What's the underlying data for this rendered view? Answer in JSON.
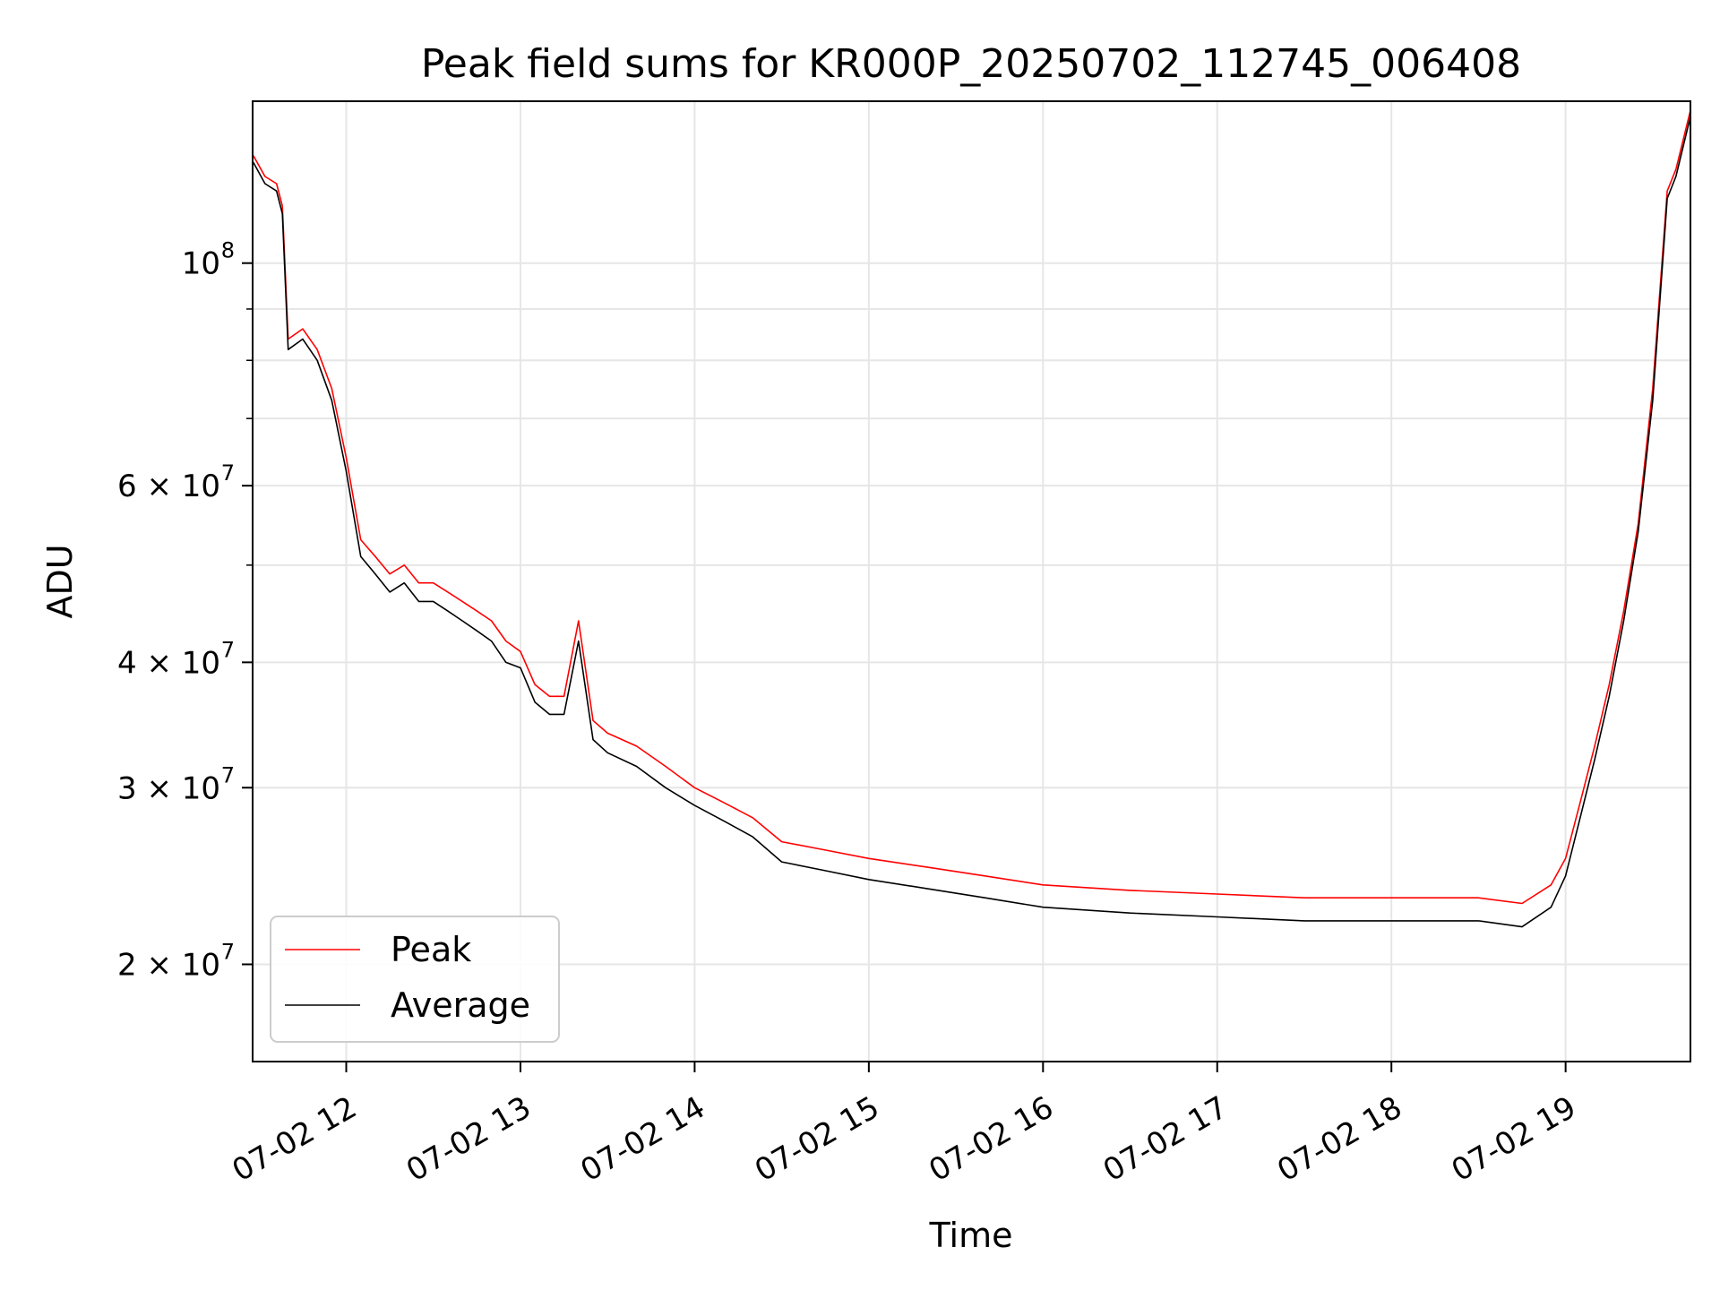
{
  "chart_data": {
    "type": "line",
    "title": "Peak field sums for KR000P_20250702_112745_006408",
    "xlabel": "Time",
    "ylabel": "ADU",
    "yscale": "log",
    "xlim": [
      "2025-07-02 11:27:45",
      "2025-07-02 19:43:00"
    ],
    "ylim": [
      16000000,
      145000000
    ],
    "grid": true,
    "legend_position": "lower-left",
    "x_ticks": [
      {
        "value": "2025-07-02 12:00",
        "label": "07-02 12"
      },
      {
        "value": "2025-07-02 13:00",
        "label": "07-02 13"
      },
      {
        "value": "2025-07-02 14:00",
        "label": "07-02 14"
      },
      {
        "value": "2025-07-02 15:00",
        "label": "07-02 15"
      },
      {
        "value": "2025-07-02 16:00",
        "label": "07-02 16"
      },
      {
        "value": "2025-07-02 17:00",
        "label": "07-02 17"
      },
      {
        "value": "2025-07-02 18:00",
        "label": "07-02 18"
      },
      {
        "value": "2025-07-02 19:00",
        "label": "07-02 19"
      }
    ],
    "y_ticks": [
      {
        "value": 20000000,
        "mantissa": "2 × 10",
        "exp": "7"
      },
      {
        "value": 30000000,
        "mantissa": "3 × 10",
        "exp": "7"
      },
      {
        "value": 40000000,
        "mantissa": "4 × 10",
        "exp": "7"
      },
      {
        "value": 60000000,
        "mantissa": "6 × 10",
        "exp": "7"
      },
      {
        "value": 100000000,
        "mantissa": "10",
        "exp": "8"
      }
    ],
    "y_minor_ticks": [
      50000000,
      70000000,
      80000000,
      90000000
    ],
    "series": [
      {
        "name": "Peak",
        "color": "#ff0000",
        "points": [
          [
            "2025-07-02 11:28",
            128000000
          ],
          [
            "2025-07-02 11:32",
            122000000
          ],
          [
            "2025-07-02 11:36",
            120000000
          ],
          [
            "2025-07-02 11:38",
            114000000
          ],
          [
            "2025-07-02 11:40",
            84000000
          ],
          [
            "2025-07-02 11:45",
            86000000
          ],
          [
            "2025-07-02 11:50",
            82000000
          ],
          [
            "2025-07-02 11:55",
            75000000
          ],
          [
            "2025-07-02 12:00",
            64000000
          ],
          [
            "2025-07-02 12:05",
            53000000
          ],
          [
            "2025-07-02 12:10",
            51000000
          ],
          [
            "2025-07-02 12:15",
            49000000
          ],
          [
            "2025-07-02 12:20",
            50000000
          ],
          [
            "2025-07-02 12:25",
            48000000
          ],
          [
            "2025-07-02 12:30",
            48000000
          ],
          [
            "2025-07-02 12:35",
            47000000
          ],
          [
            "2025-07-02 12:40",
            46000000
          ],
          [
            "2025-07-02 12:45",
            45000000
          ],
          [
            "2025-07-02 12:50",
            44000000
          ],
          [
            "2025-07-02 12:55",
            42000000
          ],
          [
            "2025-07-02 13:00",
            41000000
          ],
          [
            "2025-07-02 13:05",
            38000000
          ],
          [
            "2025-07-02 13:10",
            37000000
          ],
          [
            "2025-07-02 13:15",
            37000000
          ],
          [
            "2025-07-02 13:20",
            44000000
          ],
          [
            "2025-07-02 13:25",
            35000000
          ],
          [
            "2025-07-02 13:30",
            34000000
          ],
          [
            "2025-07-02 13:40",
            33000000
          ],
          [
            "2025-07-02 13:50",
            31500000
          ],
          [
            "2025-07-02 14:00",
            30000000
          ],
          [
            "2025-07-02 14:10",
            29000000
          ],
          [
            "2025-07-02 14:20",
            28000000
          ],
          [
            "2025-07-02 14:30",
            26500000
          ],
          [
            "2025-07-02 14:45",
            26000000
          ],
          [
            "2025-07-02 15:00",
            25500000
          ],
          [
            "2025-07-02 15:20",
            25000000
          ],
          [
            "2025-07-02 15:40",
            24500000
          ],
          [
            "2025-07-02 16:00",
            24000000
          ],
          [
            "2025-07-02 16:30",
            23700000
          ],
          [
            "2025-07-02 17:00",
            23500000
          ],
          [
            "2025-07-02 17:30",
            23300000
          ],
          [
            "2025-07-02 18:00",
            23300000
          ],
          [
            "2025-07-02 18:30",
            23300000
          ],
          [
            "2025-07-02 18:45",
            23000000
          ],
          [
            "2025-07-02 18:55",
            24000000
          ],
          [
            "2025-07-02 19:00",
            25500000
          ],
          [
            "2025-07-02 19:05",
            29000000
          ],
          [
            "2025-07-02 19:10",
            33000000
          ],
          [
            "2025-07-02 19:15",
            38000000
          ],
          [
            "2025-07-02 19:20",
            45000000
          ],
          [
            "2025-07-02 19:25",
            55000000
          ],
          [
            "2025-07-02 19:30",
            75000000
          ],
          [
            "2025-07-02 19:35",
            118000000
          ],
          [
            "2025-07-02 19:38",
            124000000
          ],
          [
            "2025-07-02 19:43",
            142000000
          ]
        ]
      },
      {
        "name": "Average",
        "color": "#000000",
        "points": [
          [
            "2025-07-02 11:28",
            126000000
          ],
          [
            "2025-07-02 11:32",
            120000000
          ],
          [
            "2025-07-02 11:36",
            118000000
          ],
          [
            "2025-07-02 11:38",
            112000000
          ],
          [
            "2025-07-02 11:40",
            82000000
          ],
          [
            "2025-07-02 11:45",
            84000000
          ],
          [
            "2025-07-02 11:50",
            80000000
          ],
          [
            "2025-07-02 11:55",
            73000000
          ],
          [
            "2025-07-02 12:00",
            62000000
          ],
          [
            "2025-07-02 12:05",
            51000000
          ],
          [
            "2025-07-02 12:10",
            49000000
          ],
          [
            "2025-07-02 12:15",
            47000000
          ],
          [
            "2025-07-02 12:20",
            48000000
          ],
          [
            "2025-07-02 12:25",
            46000000
          ],
          [
            "2025-07-02 12:30",
            46000000
          ],
          [
            "2025-07-02 12:35",
            45000000
          ],
          [
            "2025-07-02 12:40",
            44000000
          ],
          [
            "2025-07-02 12:45",
            43000000
          ],
          [
            "2025-07-02 12:50",
            42000000
          ],
          [
            "2025-07-02 12:55",
            40000000
          ],
          [
            "2025-07-02 13:00",
            39500000
          ],
          [
            "2025-07-02 13:05",
            36500000
          ],
          [
            "2025-07-02 13:10",
            35500000
          ],
          [
            "2025-07-02 13:15",
            35500000
          ],
          [
            "2025-07-02 13:20",
            42000000
          ],
          [
            "2025-07-02 13:25",
            33500000
          ],
          [
            "2025-07-02 13:30",
            32500000
          ],
          [
            "2025-07-02 13:40",
            31500000
          ],
          [
            "2025-07-02 13:50",
            30000000
          ],
          [
            "2025-07-02 14:00",
            28800000
          ],
          [
            "2025-07-02 14:10",
            27800000
          ],
          [
            "2025-07-02 14:20",
            26800000
          ],
          [
            "2025-07-02 14:30",
            25300000
          ],
          [
            "2025-07-02 14:45",
            24800000
          ],
          [
            "2025-07-02 15:00",
            24300000
          ],
          [
            "2025-07-02 15:20",
            23800000
          ],
          [
            "2025-07-02 15:40",
            23300000
          ],
          [
            "2025-07-02 16:00",
            22800000
          ],
          [
            "2025-07-02 16:30",
            22500000
          ],
          [
            "2025-07-02 17:00",
            22300000
          ],
          [
            "2025-07-02 17:30",
            22100000
          ],
          [
            "2025-07-02 18:00",
            22100000
          ],
          [
            "2025-07-02 18:30",
            22100000
          ],
          [
            "2025-07-02 18:45",
            21800000
          ],
          [
            "2025-07-02 18:55",
            22800000
          ],
          [
            "2025-07-02 19:00",
            24500000
          ],
          [
            "2025-07-02 19:05",
            28000000
          ],
          [
            "2025-07-02 19:10",
            32000000
          ],
          [
            "2025-07-02 19:15",
            37000000
          ],
          [
            "2025-07-02 19:20",
            44000000
          ],
          [
            "2025-07-02 19:25",
            54000000
          ],
          [
            "2025-07-02 19:30",
            73000000
          ],
          [
            "2025-07-02 19:35",
            116000000
          ],
          [
            "2025-07-02 19:38",
            122000000
          ],
          [
            "2025-07-02 19:43",
            140000000
          ]
        ]
      }
    ]
  }
}
